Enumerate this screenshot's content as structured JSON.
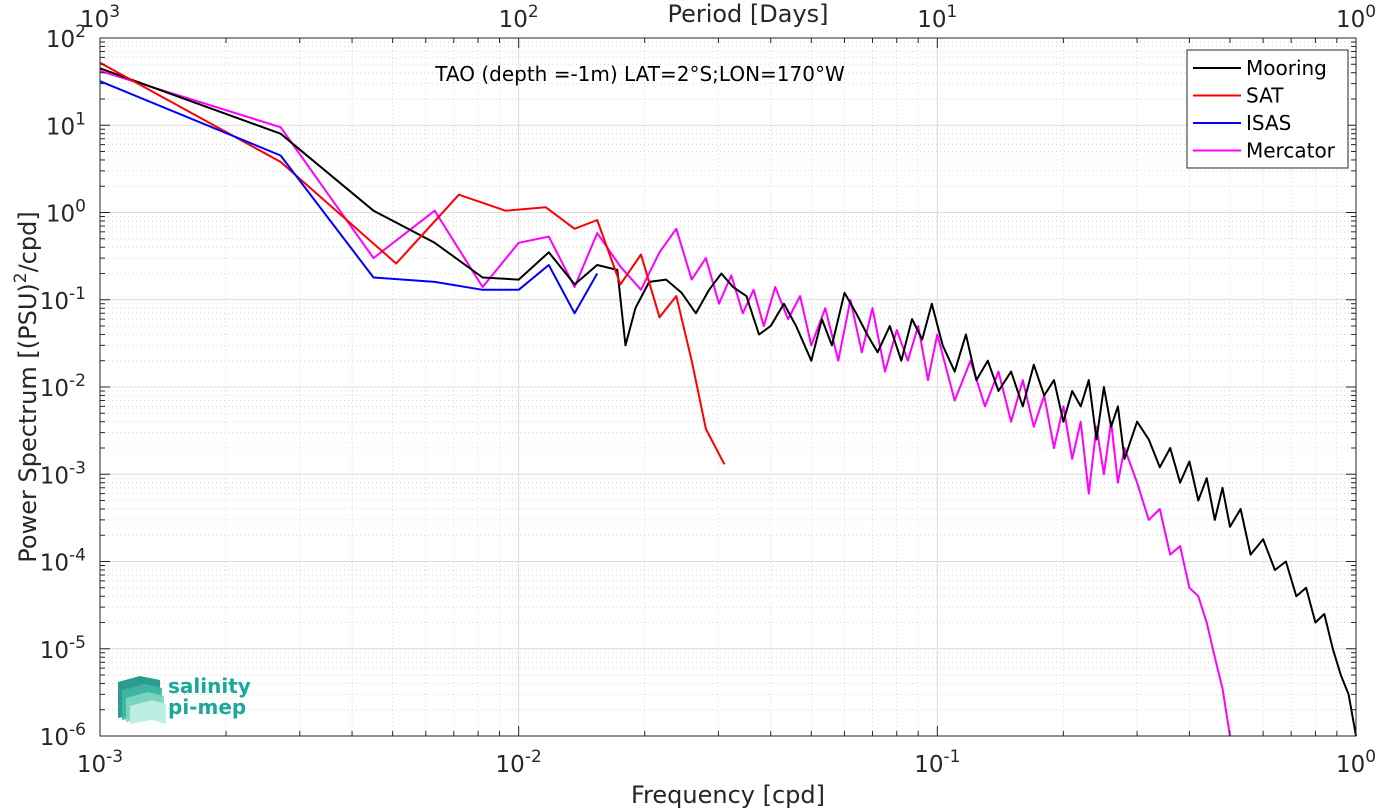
{
  "chart_data": {
    "type": "line",
    "title": "TAO (depth =-1m) LAT=2°S;LON=170°W",
    "xlabel": "Frequency [cpd]",
    "ylabel": "Power Spectrum [(PSU)^2/cpd]",
    "top_xlabel": "Period [Days]",
    "xscale": "log",
    "yscale": "log",
    "xlim": [
      0.001,
      1
    ],
    "ylim": [
      1e-06,
      100
    ],
    "grid": true,
    "minor_grid": true,
    "legend_position": "top-right",
    "x_tick_labels": [
      {
        "base": "10",
        "exp": "-3"
      },
      {
        "base": "10",
        "exp": "-2"
      },
      {
        "base": "10",
        "exp": "-1"
      },
      {
        "base": "10",
        "exp": "0"
      }
    ],
    "y_tick_labels": [
      {
        "base": "10",
        "exp": "-6"
      },
      {
        "base": "10",
        "exp": "-5"
      },
      {
        "base": "10",
        "exp": "-4"
      },
      {
        "base": "10",
        "exp": "-3"
      },
      {
        "base": "10",
        "exp": "-2"
      },
      {
        "base": "10",
        "exp": "-1"
      },
      {
        "base": "10",
        "exp": "0"
      },
      {
        "base": "10",
        "exp": "1"
      },
      {
        "base": "10",
        "exp": "2"
      }
    ],
    "top_tick_labels": [
      {
        "base": "10",
        "exp": "3"
      },
      {
        "base": "10",
        "exp": "2"
      },
      {
        "base": "10",
        "exp": "1"
      },
      {
        "base": "10",
        "exp": "0"
      }
    ],
    "series": [
      {
        "name": "Mooring",
        "color": "#000000",
        "x": [
          0.001,
          0.0027,
          0.0045,
          0.0063,
          0.0082,
          0.01,
          0.0118,
          0.0136,
          0.0154,
          0.0172,
          0.018,
          0.019,
          0.0205,
          0.0225,
          0.0245,
          0.0265,
          0.0285,
          0.0305,
          0.0325,
          0.035,
          0.0375,
          0.04,
          0.043,
          0.046,
          0.05,
          0.053,
          0.056,
          0.06,
          0.064,
          0.068,
          0.072,
          0.077,
          0.082,
          0.087,
          0.092,
          0.097,
          0.103,
          0.11,
          0.117,
          0.124,
          0.132,
          0.14,
          0.15,
          0.16,
          0.17,
          0.18,
          0.19,
          0.2,
          0.21,
          0.22,
          0.23,
          0.24,
          0.25,
          0.26,
          0.27,
          0.28,
          0.3,
          0.32,
          0.34,
          0.36,
          0.38,
          0.4,
          0.42,
          0.44,
          0.46,
          0.48,
          0.5,
          0.53,
          0.56,
          0.6,
          0.64,
          0.68,
          0.72,
          0.76,
          0.8,
          0.84,
          0.88,
          0.92,
          0.96,
          1.0
        ],
        "y": [
          45,
          8,
          1.05,
          0.45,
          0.18,
          0.17,
          0.35,
          0.15,
          0.25,
          0.22,
          0.03,
          0.08,
          0.16,
          0.17,
          0.12,
          0.07,
          0.13,
          0.2,
          0.14,
          0.11,
          0.04,
          0.05,
          0.09,
          0.05,
          0.02,
          0.06,
          0.03,
          0.12,
          0.07,
          0.04,
          0.025,
          0.05,
          0.02,
          0.06,
          0.035,
          0.09,
          0.03,
          0.015,
          0.04,
          0.012,
          0.02,
          0.009,
          0.015,
          0.006,
          0.018,
          0.008,
          0.012,
          0.004,
          0.009,
          0.006,
          0.012,
          0.0025,
          0.01,
          0.0035,
          0.006,
          0.0015,
          0.004,
          0.0025,
          0.0012,
          0.002,
          0.0008,
          0.0014,
          0.0005,
          0.0009,
          0.0003,
          0.0007,
          0.00025,
          0.0004,
          0.00012,
          0.00018,
          8e-05,
          0.0001,
          4e-05,
          5e-05,
          2e-05,
          2.5e-05,
          1e-05,
          5e-06,
          3e-06,
          1e-06
        ]
      },
      {
        "name": "SAT",
        "color": "#ff0000",
        "x": [
          0.001,
          0.0027,
          0.0051,
          0.0072,
          0.0093,
          0.0116,
          0.0136,
          0.0154,
          0.0175,
          0.0196,
          0.0217,
          0.0238,
          0.0259,
          0.028,
          0.031
        ],
        "y": [
          52,
          3.8,
          0.26,
          1.6,
          1.05,
          1.15,
          0.65,
          0.82,
          0.15,
          0.33,
          0.063,
          0.11,
          0.02,
          0.0033,
          0.0013
        ]
      },
      {
        "name": "ISAS",
        "color": "#0000ff",
        "x": [
          0.001,
          0.0027,
          0.0045,
          0.0063,
          0.0082,
          0.01,
          0.0118,
          0.0136,
          0.0154
        ],
        "y": [
          32,
          4.5,
          0.18,
          0.16,
          0.13,
          0.13,
          0.25,
          0.07,
          0.2
        ]
      },
      {
        "name": "Mercator",
        "color": "#ff00ff",
        "x": [
          0.001,
          0.0027,
          0.0045,
          0.0063,
          0.0082,
          0.01,
          0.0118,
          0.0136,
          0.0154,
          0.0175,
          0.0196,
          0.0217,
          0.0238,
          0.0259,
          0.028,
          0.0301,
          0.0322,
          0.0343,
          0.0364,
          0.0385,
          0.041,
          0.044,
          0.047,
          0.05,
          0.054,
          0.058,
          0.062,
          0.066,
          0.07,
          0.075,
          0.08,
          0.085,
          0.09,
          0.095,
          0.1,
          0.11,
          0.12,
          0.13,
          0.14,
          0.15,
          0.16,
          0.17,
          0.18,
          0.19,
          0.2,
          0.21,
          0.22,
          0.23,
          0.24,
          0.25,
          0.26,
          0.27,
          0.28,
          0.3,
          0.32,
          0.34,
          0.36,
          0.38,
          0.4,
          0.42,
          0.44,
          0.46,
          0.48,
          0.5
        ],
        "y": [
          42,
          9.5,
          0.3,
          1.05,
          0.14,
          0.45,
          0.53,
          0.14,
          0.58,
          0.24,
          0.13,
          0.35,
          0.65,
          0.17,
          0.3,
          0.09,
          0.19,
          0.07,
          0.13,
          0.05,
          0.14,
          0.06,
          0.11,
          0.03,
          0.08,
          0.02,
          0.1,
          0.025,
          0.08,
          0.015,
          0.045,
          0.02,
          0.05,
          0.012,
          0.04,
          0.007,
          0.02,
          0.006,
          0.015,
          0.004,
          0.012,
          0.0035,
          0.008,
          0.002,
          0.006,
          0.0015,
          0.004,
          0.0006,
          0.0035,
          0.001,
          0.004,
          0.0008,
          0.002,
          0.0008,
          0.0003,
          0.0004,
          0.00012,
          0.00015,
          5e-05,
          4e-05,
          2e-05,
          8e-06,
          3.5e-06,
          1e-06
        ]
      }
    ]
  },
  "logo": {
    "line1": "salinity",
    "line2": "pi-mep",
    "color": "#1aa89a"
  }
}
